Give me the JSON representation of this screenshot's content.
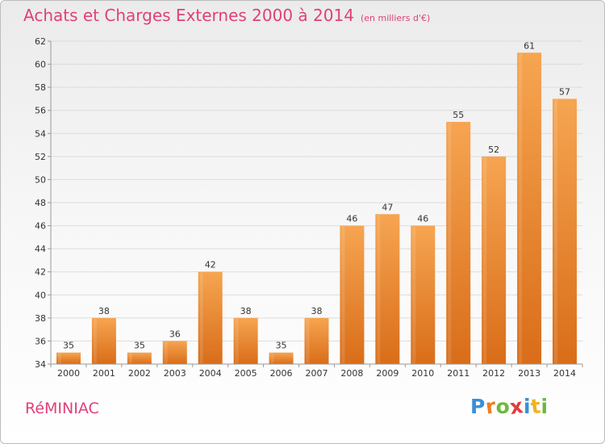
{
  "header": {
    "title": "Achats et Charges Externes 2000 à 2014",
    "subtitle": "(en milliers d'€)"
  },
  "footer": {
    "commune": "RéMINIAC",
    "logo_text": "Proxiti"
  },
  "colors": {
    "title": "#e0407a",
    "bar_light": "#f6a551",
    "bar_dark": "#d96d19",
    "logo": [
      "#3a8fd6",
      "#ef7d22",
      "#6fb83e",
      "#e23c3c",
      "#3a8fd6",
      "#efb322",
      "#6fb83e"
    ]
  },
  "chart_data": {
    "type": "bar",
    "categories": [
      "2000",
      "2001",
      "2002",
      "2003",
      "2004",
      "2005",
      "2006",
      "2007",
      "2008",
      "2009",
      "2010",
      "2011",
      "2012",
      "2013",
      "2014"
    ],
    "values": [
      35,
      38,
      35,
      36,
      42,
      38,
      35,
      38,
      46,
      47,
      46,
      55,
      52,
      61,
      57
    ],
    "data_labels": [
      "35",
      "38",
      "35",
      "36",
      "42",
      "38",
      "35",
      "38",
      "46",
      "47",
      "46",
      "55",
      "52",
      "61",
      "57"
    ],
    "ylim": [
      34,
      62
    ],
    "yticks": [
      34,
      36,
      38,
      40,
      42,
      44,
      46,
      48,
      50,
      52,
      54,
      56,
      58,
      60,
      62
    ],
    "grid": true,
    "title": "Achats et Charges Externes 2000 à 2014",
    "xlabel": "",
    "ylabel": ""
  }
}
